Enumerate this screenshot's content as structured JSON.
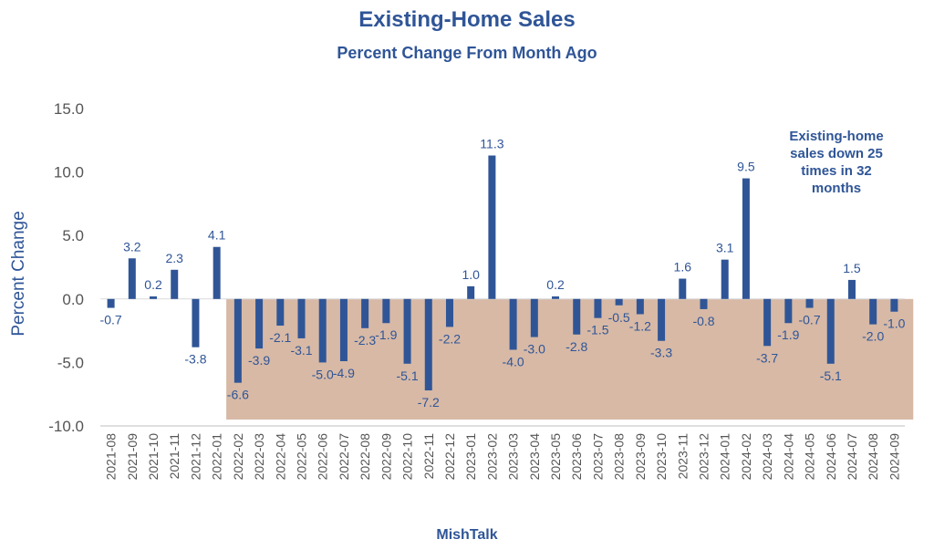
{
  "colors": {
    "bar": "#2f5597",
    "label": "#2f5597",
    "tick": "#555555",
    "shade": "#d7b9a6",
    "grid": "#d9d9d9"
  },
  "credit": "MishTalk",
  "annotation": "Existing-home\nsales down 25\ntimes in 32\nmonths",
  "chart_data": {
    "type": "bar",
    "title": "Existing-Home Sales",
    "subtitle": "Percent Change From Month Ago",
    "xlabel": "",
    "ylabel": "Percent Change",
    "ylim": [
      -10,
      15
    ],
    "yticks": [
      "-10.0",
      "-5.0",
      "0.0",
      "5.0",
      "10.0",
      "15.0"
    ],
    "grid": false,
    "shaded_range": [
      "2022-02",
      "2024-09"
    ],
    "categories": [
      "2021-08",
      "2021-09",
      "2021-10",
      "2021-11",
      "2021-12",
      "2022-01",
      "2022-02",
      "2022-03",
      "2022-04",
      "2022-05",
      "2022-06",
      "2022-07",
      "2022-08",
      "2022-09",
      "2022-10",
      "2022-11",
      "2022-12",
      "2023-01",
      "2023-02",
      "2023-03",
      "2023-04",
      "2023-05",
      "2023-06",
      "2023-07",
      "2023-08",
      "2023-09",
      "2023-10",
      "2023-11",
      "2023-12",
      "2024-01",
      "2024-02",
      "2024-03",
      "2024-04",
      "2024-05",
      "2024-06",
      "2024-07",
      "2024-08",
      "2024-09"
    ],
    "values": [
      -0.7,
      3.2,
      0.2,
      2.3,
      -3.8,
      4.1,
      -6.6,
      -3.9,
      -2.1,
      -3.1,
      -5.0,
      -4.9,
      -2.3,
      -1.9,
      -5.1,
      -7.2,
      -2.2,
      1.0,
      11.3,
      -4.0,
      -3.0,
      0.2,
      -2.8,
      -1.5,
      -0.5,
      -1.2,
      -3.3,
      1.6,
      -0.8,
      3.1,
      9.5,
      -3.7,
      -1.9,
      -0.7,
      -5.1,
      1.5,
      -2.0,
      -1.0
    ],
    "data_labels": [
      "-0.7",
      "3.2",
      "0.2",
      "2.3",
      "-3.8",
      "4.1",
      "-6.6",
      "-3.9",
      "-2.1",
      "-3.1",
      "-5.0",
      "-4.9",
      "-2.3",
      "-1.9",
      "-5.1",
      "-7.2",
      "-2.2",
      "1.0",
      "11.3",
      "-4.0",
      "-3.0",
      "0.2",
      "-2.8",
      "-1.5",
      "-0.5",
      "-1.2",
      "-3.3",
      "1.6",
      "-0.8",
      "3.1",
      "9.5",
      "-3.7",
      "-1.9",
      "-0.7",
      "-5.1",
      "1.5",
      "-2.0",
      "-1.0"
    ]
  }
}
